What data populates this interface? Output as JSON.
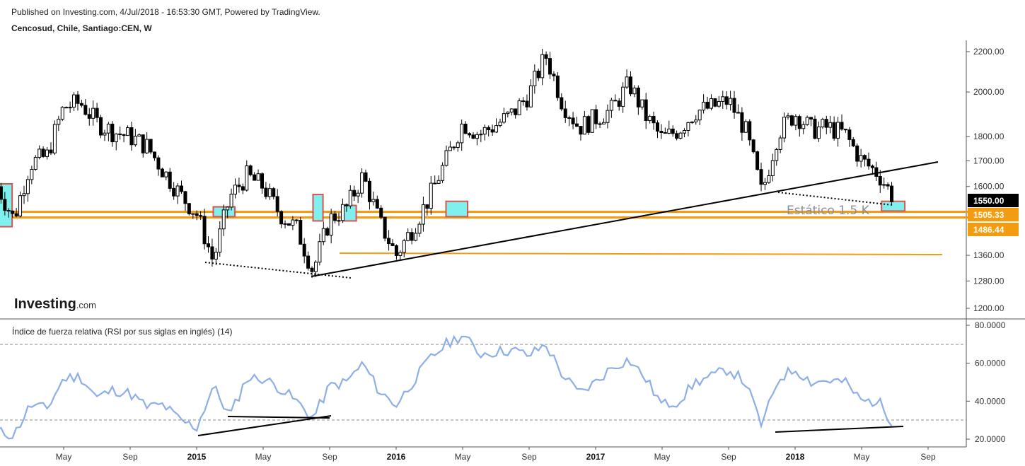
{
  "header": {
    "published": "Published on Investing.com, 4/Jul/2018 - 16:53:30 GMT, Powered by TradingView.",
    "symbol": "Cencosud, Chile, Santiago:CEN, W"
  },
  "watermark": {
    "brand": "Investing",
    "suffix": ".com"
  },
  "colors": {
    "candle": "#000000",
    "box_fill": "#7ff0ee",
    "box_border": "#d9534f",
    "support": "#f39c12",
    "rsi_line": "#8eaee8",
    "trendline": "#000000"
  },
  "chart_data": [
    {
      "type": "candlestick",
      "title": "Cencosud, Chile, Santiago:CEN, W",
      "y_scale": "log",
      "ylim": [
        1170,
        2260
      ],
      "y_ticks": [
        "2200.00",
        "2000.00",
        "1800.00",
        "1700.00",
        "1600.00",
        "1360.00",
        "1280.00",
        "1200.00"
      ],
      "x_ticks": [
        "May",
        "Sep",
        "2015",
        "May",
        "Sep",
        "2016",
        "May",
        "Sep",
        "2017",
        "May",
        "Sep",
        "2018",
        "May",
        "Sep"
      ],
      "x_range": [
        "2014-01",
        "2018-10"
      ],
      "price_tags": [
        {
          "label": "1550.00",
          "value": 1550,
          "style": "black"
        },
        {
          "label": "1505.33",
          "value": 1505.33,
          "style": "orange"
        },
        {
          "label": "1486.44",
          "value": 1486.44,
          "style": "orange"
        }
      ],
      "support_lines": [
        1505.33,
        1486.44
      ],
      "annotation": "Estático 1.5 K",
      "weekly_close_trace": [
        [
          "2014-01",
          1600
        ],
        [
          "2014-02",
          1480
        ],
        [
          "2014-03",
          1690
        ],
        [
          "2014-04",
          1720
        ],
        [
          "2014-05",
          1930
        ],
        [
          "2014-06",
          1950
        ],
        [
          "2014-07",
          1860
        ],
        [
          "2014-08",
          1820
        ],
        [
          "2014-09",
          1800
        ],
        [
          "2014-10",
          1760
        ],
        [
          "2014-11",
          1660
        ],
        [
          "2014-12",
          1570
        ],
        [
          "2015-01",
          1500
        ],
        [
          "2015-02",
          1340
        ],
        [
          "2015-03",
          1560
        ],
        [
          "2015-04",
          1640
        ],
        [
          "2015-05",
          1600
        ],
        [
          "2015-06",
          1500
        ],
        [
          "2015-07",
          1450
        ],
        [
          "2015-08",
          1310
        ],
        [
          "2015-09",
          1480
        ],
        [
          "2015-10",
          1520
        ],
        [
          "2015-11",
          1640
        ],
        [
          "2015-12",
          1470
        ],
        [
          "2016-01",
          1360
        ],
        [
          "2016-02",
          1450
        ],
        [
          "2016-03",
          1560
        ],
        [
          "2016-04",
          1700
        ],
        [
          "2016-05",
          1860
        ],
        [
          "2016-06",
          1810
        ],
        [
          "2016-07",
          1850
        ],
        [
          "2016-08",
          1900
        ],
        [
          "2016-09",
          1990
        ],
        [
          "2016-10",
          2180
        ],
        [
          "2016-11",
          1950
        ],
        [
          "2016-12",
          1840
        ],
        [
          "2017-01",
          1880
        ],
        [
          "2017-02",
          1920
        ],
        [
          "2017-03",
          2040
        ],
        [
          "2017-04",
          1890
        ],
        [
          "2017-05",
          1790
        ],
        [
          "2017-06",
          1830
        ],
        [
          "2017-07",
          1910
        ],
        [
          "2017-08",
          1930
        ],
        [
          "2017-09",
          1960
        ],
        [
          "2017-10",
          1830
        ],
        [
          "2017-11",
          1570
        ],
        [
          "2017-12",
          1820
        ],
        [
          "2018-01",
          1900
        ],
        [
          "2018-02",
          1830
        ],
        [
          "2018-03",
          1840
        ],
        [
          "2018-04",
          1810
        ],
        [
          "2018-05",
          1700
        ],
        [
          "2018-06",
          1650
        ],
        [
          "2018-07",
          1550
        ]
      ]
    },
    {
      "type": "line",
      "title": "Índice de fuerza relativa (RSI por sus siglas en inglés) (14)",
      "ylim": [
        18,
        82
      ],
      "y_ticks": [
        "80.0000",
        "60.0000",
        "40.0000",
        "20.0000"
      ],
      "reference_levels": [
        70,
        30
      ],
      "series": [
        {
          "values": [
            [
              "2014-01",
              24
            ],
            [
              "2014-02",
              22
            ],
            [
              "2014-03",
              38
            ],
            [
              "2014-04",
              36
            ],
            [
              "2014-05",
              52
            ],
            [
              "2014-06",
              53
            ],
            [
              "2014-07",
              42
            ],
            [
              "2014-08",
              46
            ],
            [
              "2014-09",
              44
            ],
            [
              "2014-10",
              37
            ],
            [
              "2014-11",
              38
            ],
            [
              "2014-12",
              30
            ],
            [
              "2015-01",
              26
            ],
            [
              "2015-02",
              48
            ],
            [
              "2015-03",
              32
            ],
            [
              "2015-04",
              52
            ],
            [
              "2015-05",
              52
            ],
            [
              "2015-06",
              47
            ],
            [
              "2015-07",
              40
            ],
            [
              "2015-08",
              31
            ],
            [
              "2015-09",
              48
            ],
            [
              "2015-10",
              50
            ],
            [
              "2015-11",
              60
            ],
            [
              "2015-12",
              45
            ],
            [
              "2016-01",
              38
            ],
            [
              "2016-02",
              50
            ],
            [
              "2016-03",
              62
            ],
            [
              "2016-04",
              70
            ],
            [
              "2016-05",
              75
            ],
            [
              "2016-06",
              65
            ],
            [
              "2016-07",
              66
            ],
            [
              "2016-08",
              67
            ],
            [
              "2016-09",
              64
            ],
            [
              "2016-10",
              70
            ],
            [
              "2016-11",
              54
            ],
            [
              "2016-12",
              44
            ],
            [
              "2017-01",
              50
            ],
            [
              "2017-02",
              58
            ],
            [
              "2017-03",
              62
            ],
            [
              "2017-04",
              52
            ],
            [
              "2017-05",
              38
            ],
            [
              "2017-06",
              40
            ],
            [
              "2017-07",
              50
            ],
            [
              "2017-08",
              53
            ],
            [
              "2017-09",
              57
            ],
            [
              "2017-10",
              50
            ],
            [
              "2017-11",
              27
            ],
            [
              "2017-12",
              52
            ],
            [
              "2018-01",
              57
            ],
            [
              "2018-02",
              50
            ],
            [
              "2018-03",
              51
            ],
            [
              "2018-04",
              50
            ],
            [
              "2018-05",
              40
            ],
            [
              "2018-06",
              40
            ],
            [
              "2018-07",
              27
            ]
          ]
        }
      ]
    }
  ]
}
